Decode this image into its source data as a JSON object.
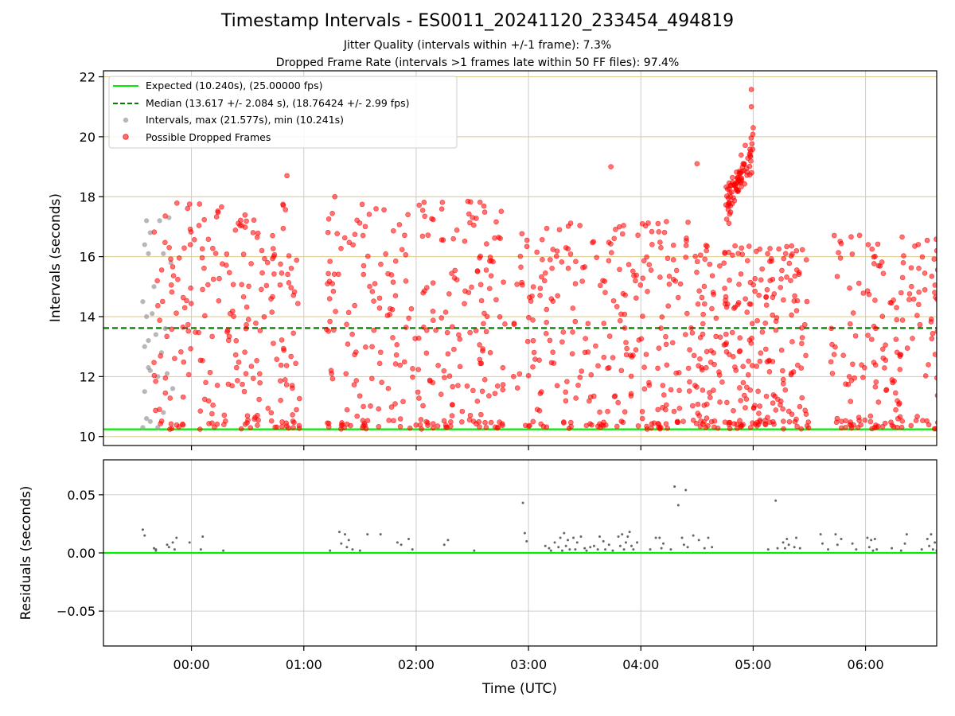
{
  "title": "Timestamp Intervals - ES0011_20241120_233454_494819",
  "subtitle_1": "Jitter Quality (intervals within +/-1 frame): 7.3%",
  "subtitle_2": "Dropped Frame Rate (intervals >1 frames late within 50 FF files): 97.4%",
  "colors": {
    "expected": "#00ee00",
    "median": "#007f00",
    "normal_points": "#999999",
    "dropped_points": "#ff0000",
    "residual_points": "#666666",
    "grid_top": "#d9c98a",
    "grid": "#cccccc"
  },
  "chart_data": [
    {
      "type": "scatter",
      "ylabel": "Intervals (seconds)",
      "y_range": [
        9.7,
        22.2
      ],
      "x_range": [
        "23:13",
        "06:38"
      ],
      "y_ticks": [
        10,
        12,
        14,
        16,
        18,
        20,
        22
      ],
      "y_tick_labels": [
        "10",
        "12",
        "14",
        "16",
        "18",
        "20",
        "22"
      ],
      "grid": true,
      "legend": "top-left",
      "reference_lines": [
        {
          "name": "Expected (10.240s), (25.00000 fps)",
          "y": 10.24,
          "style": "solid"
        },
        {
          "name": "Median (13.617 +/- 2.084 s), (18.76424 +/- 2.99 fps)",
          "y": 13.617,
          "style": "dashed"
        }
      ],
      "series": [
        {
          "name": "Intervals, max (21.577s), min (10.241s)",
          "points": [
            [
              "23:34",
              14.5
            ],
            [
              "23:34",
              10.3
            ],
            [
              "23:35",
              11.5
            ],
            [
              "23:35",
              13.0
            ],
            [
              "23:35",
              16.4
            ],
            [
              "23:36",
              17.2
            ],
            [
              "23:36",
              14.0
            ],
            [
              "23:36",
              10.6
            ],
            [
              "23:37",
              12.3
            ],
            [
              "23:37",
              16.1
            ],
            [
              "23:37",
              13.2
            ],
            [
              "23:38",
              16.8
            ],
            [
              "23:38",
              12.2
            ],
            [
              "23:38",
              10.5
            ],
            [
              "23:39",
              14.1
            ],
            [
              "23:40",
              15.0
            ],
            [
              "23:41",
              13.4
            ],
            [
              "23:42",
              10.3
            ],
            [
              "23:42",
              12.0
            ],
            [
              "23:43",
              17.2
            ],
            [
              "23:44",
              12.8
            ],
            [
              "23:45",
              16.1
            ],
            [
              "23:45",
              10.8
            ],
            [
              "23:46",
              13.6
            ],
            [
              "23:47",
              12.1
            ],
            [
              "23:48",
              17.3
            ],
            [
              "23:49",
              15.8
            ],
            [
              "23:50",
              11.6
            ]
          ]
        },
        {
          "name": "Possible Dropped Frames",
          "max": 21.577,
          "min": 10.241
        }
      ]
    },
    {
      "type": "scatter",
      "xlabel": "Time (UTC)",
      "ylabel": "Residuals (seconds)",
      "y_range": [
        -0.08,
        0.08
      ],
      "x_range": [
        "23:13",
        "06:38"
      ],
      "y_ticks": [
        -0.05,
        0.0,
        0.05
      ],
      "y_tick_labels": [
        "−0.05",
        "0.00",
        "0.05"
      ],
      "x_ticks": [
        "00:00",
        "01:00",
        "02:00",
        "03:00",
        "04:00",
        "05:00",
        "06:00"
      ],
      "grid": true,
      "reference_lines": [
        {
          "y": 0.0,
          "style": "solid"
        }
      ],
      "series": [
        {
          "name": "Residuals",
          "points": [
            [
              "23:34",
              0.02
            ],
            [
              "23:35",
              0.015
            ],
            [
              "23:40",
              0.004
            ],
            [
              "23:41",
              0.003
            ],
            [
              "23:41",
              0.002
            ],
            [
              "23:47",
              0.007
            ],
            [
              "23:48",
              0.005
            ],
            [
              "23:50",
              0.009
            ],
            [
              "23:51",
              0.003
            ],
            [
              "23:52",
              0.013
            ],
            [
              "23:59",
              0.009
            ],
            [
              "00:05",
              0.003
            ],
            [
              "00:06",
              0.014
            ],
            [
              "00:17",
              0.002
            ],
            [
              "01:14",
              0.002
            ],
            [
              "01:19",
              0.018
            ],
            [
              "01:20",
              0.008
            ],
            [
              "01:22",
              0.016
            ],
            [
              "01:23",
              0.005
            ],
            [
              "01:24",
              0.011
            ],
            [
              "01:26",
              0.003
            ],
            [
              "01:30",
              0.002
            ],
            [
              "01:34",
              0.016
            ],
            [
              "01:41",
              0.016
            ],
            [
              "01:50",
              0.009
            ],
            [
              "01:52",
              0.007
            ],
            [
              "01:56",
              0.012
            ],
            [
              "01:58",
              0.003
            ],
            [
              "02:15",
              0.007
            ],
            [
              "02:17",
              0.011
            ],
            [
              "02:31",
              0.002
            ],
            [
              "02:57",
              0.043
            ],
            [
              "02:58",
              0.017
            ],
            [
              "02:59",
              0.01
            ],
            [
              "03:09",
              0.006
            ],
            [
              "03:11",
              0.004
            ],
            [
              "03:12",
              0.002
            ],
            [
              "03:14",
              0.009
            ],
            [
              "03:16",
              0.005
            ],
            [
              "03:17",
              0.013
            ],
            [
              "03:18",
              0.002
            ],
            [
              "03:19",
              0.017
            ],
            [
              "03:20",
              0.006
            ],
            [
              "03:21",
              0.011
            ],
            [
              "03:22",
              0.003
            ],
            [
              "03:24",
              0.013
            ],
            [
              "03:25",
              0.003
            ],
            [
              "03:26",
              0.009
            ],
            [
              "03:28",
              0.014
            ],
            [
              "03:30",
              0.004
            ],
            [
              "03:31",
              0.002
            ],
            [
              "03:33",
              0.005
            ],
            [
              "03:35",
              0.006
            ],
            [
              "03:37",
              0.003
            ],
            [
              "03:38",
              0.014
            ],
            [
              "03:40",
              0.01
            ],
            [
              "03:41",
              0.003
            ],
            [
              "03:43",
              0.007
            ],
            [
              "03:45",
              0.002
            ],
            [
              "03:48",
              0.014
            ],
            [
              "03:49",
              0.006
            ],
            [
              "03:50",
              0.016
            ],
            [
              "03:51",
              0.003
            ],
            [
              "03:52",
              0.009
            ],
            [
              "03:53",
              0.014
            ],
            [
              "03:54",
              0.018
            ],
            [
              "03:55",
              0.006
            ],
            [
              "03:56",
              0.003
            ],
            [
              "03:58",
              0.009
            ],
            [
              "04:05",
              0.003
            ],
            [
              "04:08",
              0.013
            ],
            [
              "04:10",
              0.013
            ],
            [
              "04:11",
              0.004
            ],
            [
              "04:12",
              0.008
            ],
            [
              "04:16",
              0.003
            ],
            [
              "04:18",
              0.057
            ],
            [
              "04:20",
              0.041
            ],
            [
              "04:22",
              0.013
            ],
            [
              "04:23",
              0.007
            ],
            [
              "04:24",
              0.054
            ],
            [
              "04:25",
              0.005
            ],
            [
              "04:28",
              0.015
            ],
            [
              "04:31",
              0.011
            ],
            [
              "04:34",
              0.004
            ],
            [
              "04:36",
              0.013
            ],
            [
              "04:38",
              0.005
            ],
            [
              "05:08",
              0.003
            ],
            [
              "05:12",
              0.045
            ],
            [
              "05:13",
              0.004
            ],
            [
              "05:16",
              0.009
            ],
            [
              "05:17",
              0.004
            ],
            [
              "05:18",
              0.012
            ],
            [
              "05:19",
              0.007
            ],
            [
              "05:22",
              0.005
            ],
            [
              "05:23",
              0.013
            ],
            [
              "05:25",
              0.004
            ],
            [
              "05:36",
              0.016
            ],
            [
              "05:37",
              0.008
            ],
            [
              "05:40",
              0.003
            ],
            [
              "05:44",
              0.016
            ],
            [
              "05:45",
              0.007
            ],
            [
              "05:47",
              0.012
            ],
            [
              "05:53",
              0.008
            ],
            [
              "05:55",
              0.003
            ],
            [
              "06:01",
              0.013
            ],
            [
              "06:02",
              0.005
            ],
            [
              "06:03",
              0.011
            ],
            [
              "06:04",
              0.002
            ],
            [
              "06:05",
              0.012
            ],
            [
              "06:06",
              0.003
            ],
            [
              "06:14",
              0.004
            ],
            [
              "06:19",
              0.002
            ],
            [
              "06:21",
              0.008
            ],
            [
              "06:22",
              0.016
            ],
            [
              "06:30",
              0.003
            ],
            [
              "06:33",
              0.012
            ],
            [
              "06:34",
              0.006
            ],
            [
              "06:35",
              0.016
            ],
            [
              "06:36",
              0.003
            ],
            [
              "06:37",
              0.009
            ],
            [
              "06:38",
              0.002
            ]
          ]
        }
      ]
    }
  ]
}
